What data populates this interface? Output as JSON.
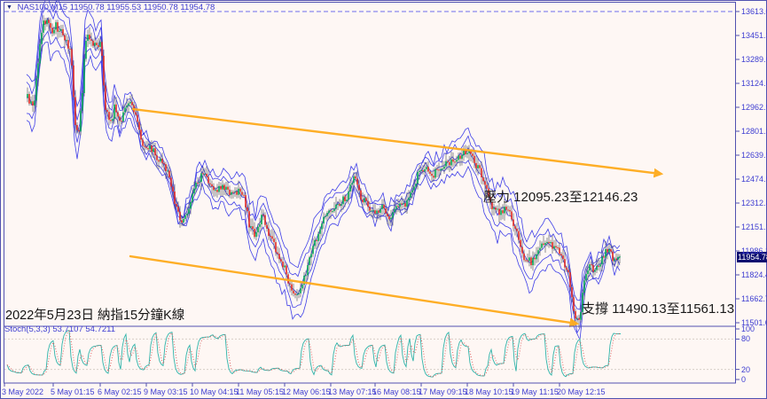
{
  "header": {
    "symbol": "NAS100,M15",
    "ohlc": "11950.78 11955.53 11950.78 11954.78"
  },
  "price_axis": {
    "current": "11954.78",
    "labels": [
      "13613.00",
      "13451.30",
      "13289.60",
      "13124.60",
      "12962.90",
      "12801.20",
      "12639.50",
      "12474.50",
      "12312.80",
      "12151.10",
      "11986.10",
      "11824.40",
      "11662.70",
      "11501.00"
    ]
  },
  "time_axis": {
    "labels": [
      "3 May 2022",
      "5 May 01:15",
      "6 May 02:15",
      "9 May 03:15",
      "10 May 04:15",
      "11 May 05:15",
      "12 May 06:15",
      "13 May 07:15",
      "16 May 08:15",
      "17 May 09:15",
      "18 May 10:15",
      "19 May 11:15",
      "20 May 12:15"
    ]
  },
  "stoch": {
    "label": "Stoch(5,3,3)",
    "values": "53.7107 54.7211",
    "scale": [
      100,
      80,
      20,
      0
    ],
    "levels": [
      80,
      20
    ]
  },
  "annotations": {
    "resistance": "壓力 12095.23至12146.23",
    "support": "支撐 11490.13至11561.13",
    "caption": "2022年5月23日 納指15分鐘K線"
  },
  "colors": {
    "background": "#fef7f4",
    "axis_text": "#3d3dd1",
    "frame": "#5151b0",
    "candle_up": "#00a550",
    "candle_down": "#e02a20",
    "wick": "#44484f",
    "band_blue": "#3f3fe8",
    "trendline_orange": "#ffab1c",
    "stoch_main": "#2fb3a9",
    "stoch_signal": "#e05555",
    "level_dash": "#d8cec7",
    "badge_bg": "#0d0d70",
    "badge_text": "#ffffff",
    "annotation_text": "#1a1a1a"
  },
  "chart_data": {
    "type": "candlestick",
    "title": "NAS100,M15",
    "ohlc_readout": {
      "open": "11950.78",
      "high": "11955.53",
      "low": "11950.78",
      "close": "11954.78"
    },
    "current_price": 11954.78,
    "ylim": [
      11487,
      13679
    ],
    "y_tick_step": 161.7,
    "grid": "off",
    "dashed_top_level": 13613.0,
    "resistance_zone": [
      12095.23,
      12146.23
    ],
    "support_zone": [
      11490.13,
      11561.13
    ],
    "trendlines": [
      {
        "name": "upper-channel",
        "x1": 150,
        "price1": 12954,
        "x2": 745,
        "price2": 12517
      },
      {
        "name": "lower-channel",
        "x1": 147,
        "price1": 11960,
        "x2": 650,
        "price2": 11505
      }
    ],
    "price_anchors": [
      [
        32,
        13030
      ],
      [
        38,
        12950
      ],
      [
        44,
        13330
      ],
      [
        48,
        13520
      ],
      [
        54,
        13560
      ],
      [
        58,
        13450
      ],
      [
        62,
        13520
      ],
      [
        68,
        13480
      ],
      [
        74,
        13420
      ],
      [
        80,
        13330
      ],
      [
        84,
        12910
      ],
      [
        88,
        12760
      ],
      [
        92,
        12970
      ],
      [
        96,
        13420
      ],
      [
        102,
        13450
      ],
      [
        108,
        13360
      ],
      [
        114,
        13430
      ],
      [
        118,
        13000
      ],
      [
        124,
        12850
      ],
      [
        130,
        12980
      ],
      [
        136,
        12860
      ],
      [
        142,
        12960
      ],
      [
        148,
        12980
      ],
      [
        154,
        12880
      ],
      [
        160,
        12730
      ],
      [
        168,
        12700
      ],
      [
        176,
        12640
      ],
      [
        184,
        12580
      ],
      [
        192,
        12470
      ],
      [
        200,
        12250
      ],
      [
        206,
        12190
      ],
      [
        212,
        12280
      ],
      [
        220,
        12430
      ],
      [
        228,
        12520
      ],
      [
        236,
        12450
      ],
      [
        244,
        12400
      ],
      [
        252,
        12430
      ],
      [
        260,
        12370
      ],
      [
        268,
        12400
      ],
      [
        276,
        12340
      ],
      [
        282,
        12150
      ],
      [
        288,
        12100
      ],
      [
        296,
        12250
      ],
      [
        304,
        12100
      ],
      [
        312,
        11990
      ],
      [
        320,
        11890
      ],
      [
        328,
        11740
      ],
      [
        336,
        11710
      ],
      [
        344,
        11830
      ],
      [
        352,
        11990
      ],
      [
        360,
        12130
      ],
      [
        368,
        12250
      ],
      [
        376,
        12290
      ],
      [
        384,
        12320
      ],
      [
        392,
        12370
      ],
      [
        400,
        12500
      ],
      [
        408,
        12350
      ],
      [
        416,
        12300
      ],
      [
        424,
        12250
      ],
      [
        432,
        12290
      ],
      [
        440,
        12230
      ],
      [
        448,
        12320
      ],
      [
        456,
        12310
      ],
      [
        464,
        12380
      ],
      [
        472,
        12520
      ],
      [
        480,
        12580
      ],
      [
        488,
        12510
      ],
      [
        496,
        12560
      ],
      [
        504,
        12590
      ],
      [
        512,
        12620
      ],
      [
        520,
        12640
      ],
      [
        528,
        12680
      ],
      [
        536,
        12580
      ],
      [
        544,
        12500
      ],
      [
        552,
        12330
      ],
      [
        560,
        12250
      ],
      [
        568,
        12280
      ],
      [
        576,
        12240
      ],
      [
        584,
        12100
      ],
      [
        592,
        11940
      ],
      [
        600,
        11920
      ],
      [
        608,
        12000
      ],
      [
        616,
        12050
      ],
      [
        624,
        12020
      ],
      [
        632,
        11980
      ],
      [
        640,
        11870
      ],
      [
        646,
        11640
      ],
      [
        650,
        11520
      ],
      [
        654,
        11550
      ],
      [
        658,
        11770
      ],
      [
        664,
        11900
      ],
      [
        670,
        11860
      ],
      [
        676,
        11890
      ],
      [
        682,
        11990
      ],
      [
        688,
        12020
      ],
      [
        692,
        11930
      ],
      [
        697,
        11955
      ]
    ],
    "stochastic": {
      "type": "line",
      "label": "Stoch(5,3,3)",
      "main_value": 53.7107,
      "signal_value": 54.7211,
      "range": [
        0,
        100
      ],
      "levels": [
        80,
        20
      ]
    }
  }
}
